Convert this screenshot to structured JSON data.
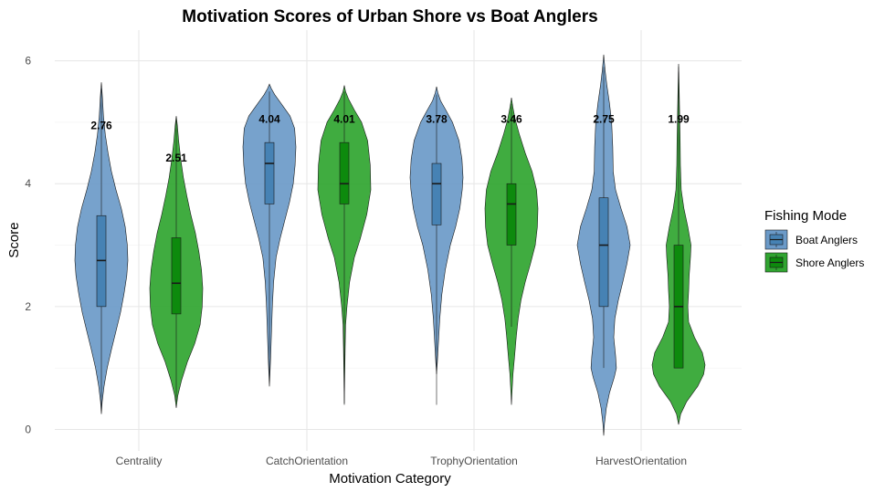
{
  "chart_data": {
    "type": "violin",
    "title": "Motivation Scores of Urban Shore vs Boat Anglers",
    "xlabel": "Motivation Category",
    "ylabel": "Score",
    "ylim": [
      -0.35,
      6.5
    ],
    "yticks": [
      0,
      2,
      4,
      6
    ],
    "grid": true,
    "categories": [
      "Centrality",
      "CatchOrientation",
      "TrophyOrientation",
      "HarvestOrientation"
    ],
    "legend": {
      "title": "Fishing Mode",
      "position": "right",
      "entries": [
        "Boat Anglers",
        "Shore Anglers"
      ]
    },
    "colors": {
      "Boat Anglers": {
        "fill": "#6b9ac8",
        "box": "#4682b4"
      },
      "Shore Anglers": {
        "fill": "#30a530",
        "box": "#0d8a0d"
      }
    },
    "series": [
      {
        "name": "Boat Anglers",
        "groups": [
          {
            "category": "Centrality",
            "mean_label": "2.76",
            "mean_label_y": 4.95,
            "box": {
              "q1": 2.0,
              "median": 2.75,
              "q3": 3.48,
              "whisker_low": 0.3,
              "whisker_high": 5.55
            },
            "density": [
              [
                0.25,
                0
              ],
              [
                0.45,
                0.03
              ],
              [
                0.7,
                0.1
              ],
              [
                1.0,
                0.22
              ],
              [
                1.3,
                0.38
              ],
              [
                1.6,
                0.55
              ],
              [
                1.9,
                0.72
              ],
              [
                2.2,
                0.85
              ],
              [
                2.5,
                0.96
              ],
              [
                2.75,
                1.0
              ],
              [
                3.0,
                0.98
              ],
              [
                3.3,
                0.9
              ],
              [
                3.6,
                0.75
              ],
              [
                3.9,
                0.55
              ],
              [
                4.2,
                0.38
              ],
              [
                4.5,
                0.25
              ],
              [
                4.8,
                0.15
              ],
              [
                5.1,
                0.08
              ],
              [
                5.4,
                0.04
              ],
              [
                5.65,
                0
              ]
            ]
          },
          {
            "category": "CatchOrientation",
            "mean_label": "4.04",
            "mean_label_y": 5.05,
            "box": {
              "q1": 3.67,
              "median": 4.33,
              "q3": 4.67,
              "whisker_low": 0.78,
              "whisker_high": 5.5
            },
            "density": [
              [
                0.7,
                0
              ],
              [
                0.9,
                0.02
              ],
              [
                1.2,
                0.05
              ],
              [
                1.6,
                0.08
              ],
              [
                2.0,
                0.11
              ],
              [
                2.4,
                0.16
              ],
              [
                2.8,
                0.25
              ],
              [
                3.1,
                0.4
              ],
              [
                3.4,
                0.58
              ],
              [
                3.7,
                0.76
              ],
              [
                4.0,
                0.9
              ],
              [
                4.3,
                0.97
              ],
              [
                4.6,
                1.0
              ],
              [
                4.9,
                0.95
              ],
              [
                5.1,
                0.78
              ],
              [
                5.3,
                0.45
              ],
              [
                5.45,
                0.2
              ],
              [
                5.55,
                0.07
              ],
              [
                5.62,
                0
              ]
            ]
          },
          {
            "category": "TrophyOrientation",
            "mean_label": "3.78",
            "mean_label_y": 5.05,
            "box": {
              "q1": 3.33,
              "median": 4.0,
              "q3": 4.33,
              "whisker_low": 0.4,
              "whisker_high": 5.45
            },
            "density": [
              [
                0.9,
                0
              ],
              [
                1.1,
                0.03
              ],
              [
                1.4,
                0.07
              ],
              [
                1.8,
                0.12
              ],
              [
                2.2,
                0.2
              ],
              [
                2.6,
                0.33
              ],
              [
                3.0,
                0.52
              ],
              [
                3.3,
                0.72
              ],
              [
                3.6,
                0.88
              ],
              [
                3.9,
                0.97
              ],
              [
                4.1,
                1.0
              ],
              [
                4.4,
                0.96
              ],
              [
                4.7,
                0.85
              ],
              [
                5.0,
                0.6
              ],
              [
                5.2,
                0.35
              ],
              [
                5.35,
                0.15
              ],
              [
                5.48,
                0.05
              ],
              [
                5.58,
                0
              ]
            ]
          },
          {
            "category": "HarvestOrientation",
            "mean_label": "2.75",
            "mean_label_y": 5.05,
            "box": {
              "q1": 2.0,
              "median": 3.0,
              "q3": 3.77,
              "whisker_low": 1.0,
              "whisker_high": 5.9
            },
            "density": [
              [
                -0.1,
                0
              ],
              [
                0.1,
                0.03
              ],
              [
                0.35,
                0.1
              ],
              [
                0.6,
                0.22
              ],
              [
                0.85,
                0.4
              ],
              [
                1.0,
                0.48
              ],
              [
                1.2,
                0.45
              ],
              [
                1.5,
                0.38
              ],
              [
                1.8,
                0.42
              ],
              [
                2.1,
                0.55
              ],
              [
                2.4,
                0.72
              ],
              [
                2.7,
                0.88
              ],
              [
                3.0,
                1.0
              ],
              [
                3.3,
                0.88
              ],
              [
                3.6,
                0.65
              ],
              [
                3.9,
                0.45
              ],
              [
                4.2,
                0.36
              ],
              [
                4.6,
                0.34
              ],
              [
                5.0,
                0.3
              ],
              [
                5.3,
                0.22
              ],
              [
                5.6,
                0.12
              ],
              [
                5.85,
                0.05
              ],
              [
                6.1,
                0
              ]
            ]
          }
        ]
      },
      {
        "name": "Shore Anglers",
        "groups": [
          {
            "category": "Centrality",
            "mean_label": "2.51",
            "mean_label_y": 4.42,
            "box": {
              "q1": 1.88,
              "median": 2.38,
              "q3": 3.12,
              "whisker_low": 0.45,
              "whisker_high": 5.05
            },
            "density": [
              [
                0.35,
                0
              ],
              [
                0.55,
                0.06
              ],
              [
                0.8,
                0.2
              ],
              [
                1.1,
                0.42
              ],
              [
                1.4,
                0.7
              ],
              [
                1.7,
                0.9
              ],
              [
                2.0,
                0.98
              ],
              [
                2.3,
                1.0
              ],
              [
                2.6,
                0.95
              ],
              [
                2.9,
                0.85
              ],
              [
                3.2,
                0.72
              ],
              [
                3.5,
                0.55
              ],
              [
                3.8,
                0.4
              ],
              [
                4.1,
                0.27
              ],
              [
                4.4,
                0.17
              ],
              [
                4.7,
                0.09
              ],
              [
                4.95,
                0.04
              ],
              [
                5.1,
                0
              ]
            ]
          },
          {
            "category": "CatchOrientation",
            "mean_label": "4.01",
            "mean_label_y": 5.05,
            "box": {
              "q1": 3.67,
              "median": 4.0,
              "q3": 4.67,
              "whisker_low": 0.42,
              "whisker_high": 5.5
            },
            "density": [
              [
                0.4,
                0
              ],
              [
                0.7,
                0.01
              ],
              [
                1.0,
                0.02
              ],
              [
                1.3,
                0.03
              ],
              [
                1.7,
                0.05
              ],
              [
                2.0,
                0.1
              ],
              [
                2.4,
                0.2
              ],
              [
                2.8,
                0.38
              ],
              [
                3.1,
                0.6
              ],
              [
                3.5,
                0.85
              ],
              [
                3.9,
                1.0
              ],
              [
                4.3,
                0.98
              ],
              [
                4.7,
                0.88
              ],
              [
                5.0,
                0.65
              ],
              [
                5.2,
                0.38
              ],
              [
                5.38,
                0.16
              ],
              [
                5.5,
                0.05
              ],
              [
                5.6,
                0
              ]
            ]
          },
          {
            "category": "TrophyOrientation",
            "mean_label": "3.46",
            "mean_label_y": 5.05,
            "box": {
              "q1": 3.0,
              "median": 3.67,
              "q3": 4.0,
              "whisker_low": 1.67,
              "whisker_high": 5.3
            },
            "density": [
              [
                0.4,
                0
              ],
              [
                0.6,
                0.02
              ],
              [
                0.9,
                0.06
              ],
              [
                1.2,
                0.12
              ],
              [
                1.5,
                0.18
              ],
              [
                1.8,
                0.25
              ],
              [
                2.1,
                0.36
              ],
              [
                2.4,
                0.52
              ],
              [
                2.7,
                0.72
              ],
              [
                3.0,
                0.9
              ],
              [
                3.3,
                0.98
              ],
              [
                3.6,
                1.0
              ],
              [
                3.9,
                0.95
              ],
              [
                4.2,
                0.78
              ],
              [
                4.5,
                0.52
              ],
              [
                4.8,
                0.3
              ],
              [
                5.05,
                0.14
              ],
              [
                5.25,
                0.05
              ],
              [
                5.4,
                0
              ]
            ]
          },
          {
            "category": "HarvestOrientation",
            "mean_label": "1.99",
            "mean_label_y": 5.05,
            "box": {
              "q1": 1.0,
              "median": 2.0,
              "q3": 3.0,
              "whisker_low": 1.0,
              "whisker_high": 5.9
            },
            "density": [
              [
                0.08,
                0
              ],
              [
                0.25,
                0.08
              ],
              [
                0.45,
                0.3
              ],
              [
                0.7,
                0.72
              ],
              [
                0.9,
                0.95
              ],
              [
                1.05,
                1.0
              ],
              [
                1.25,
                0.9
              ],
              [
                1.5,
                0.6
              ],
              [
                1.75,
                0.38
              ],
              [
                2.0,
                0.35
              ],
              [
                2.25,
                0.38
              ],
              [
                2.5,
                0.4
              ],
              [
                2.8,
                0.45
              ],
              [
                3.0,
                0.47
              ],
              [
                3.3,
                0.35
              ],
              [
                3.6,
                0.2
              ],
              [
                3.9,
                0.1
              ],
              [
                4.3,
                0.07
              ],
              [
                4.7,
                0.06
              ],
              [
                5.1,
                0.04
              ],
              [
                5.5,
                0.025
              ],
              [
                5.8,
                0.01
              ],
              [
                5.95,
                0
              ]
            ]
          }
        ]
      }
    ]
  }
}
